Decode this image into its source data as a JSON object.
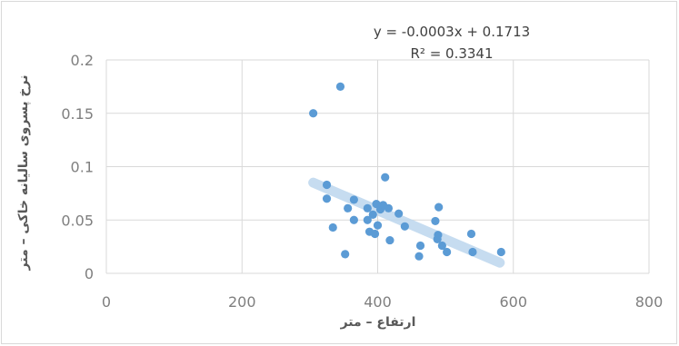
{
  "chart_data": {
    "type": "scatter",
    "xlabel": "ارتفاع – متر",
    "ylabel": "نرخ پسروی سالیانه خاکی – متر",
    "xlim": [
      0,
      800
    ],
    "ylim": [
      0,
      0.2
    ],
    "x_ticks": [
      0,
      200,
      400,
      600,
      800
    ],
    "y_ticks": [
      0,
      0.05,
      0.1,
      0.15,
      0.2
    ],
    "x_tick_labels": [
      "0",
      "200",
      "400",
      "600",
      "800"
    ],
    "y_tick_labels": [
      "0",
      "0.05",
      "0.1",
      "0.15",
      "0.2"
    ],
    "grid": true,
    "point_color": "#5b9bd5",
    "trendline_color": "#bdd7ee",
    "trendline": {
      "equation": "y = -0.0003x + 0.1713",
      "r_squared": "R² = 0.3341",
      "x_range": [
        305,
        580
      ],
      "y_range": [
        0.085,
        0.01
      ]
    },
    "points": [
      {
        "x": 305,
        "y": 0.15
      },
      {
        "x": 345,
        "y": 0.175
      },
      {
        "x": 325,
        "y": 0.083
      },
      {
        "x": 325,
        "y": 0.07
      },
      {
        "x": 334,
        "y": 0.043
      },
      {
        "x": 352,
        "y": 0.018
      },
      {
        "x": 356,
        "y": 0.061
      },
      {
        "x": 365,
        "y": 0.069
      },
      {
        "x": 365,
        "y": 0.05
      },
      {
        "x": 385,
        "y": 0.061
      },
      {
        "x": 385,
        "y": 0.05
      },
      {
        "x": 388,
        "y": 0.039
      },
      {
        "x": 393,
        "y": 0.055
      },
      {
        "x": 396,
        "y": 0.037
      },
      {
        "x": 398,
        "y": 0.065
      },
      {
        "x": 400,
        "y": 0.045
      },
      {
        "x": 404,
        "y": 0.06
      },
      {
        "x": 408,
        "y": 0.064
      },
      {
        "x": 411,
        "y": 0.09
      },
      {
        "x": 416,
        "y": 0.061
      },
      {
        "x": 418,
        "y": 0.031
      },
      {
        "x": 431,
        "y": 0.056
      },
      {
        "x": 440,
        "y": 0.044
      },
      {
        "x": 461,
        "y": 0.016
      },
      {
        "x": 463,
        "y": 0.026
      },
      {
        "x": 485,
        "y": 0.049
      },
      {
        "x": 488,
        "y": 0.032
      },
      {
        "x": 489,
        "y": 0.036
      },
      {
        "x": 490,
        "y": 0.062
      },
      {
        "x": 495,
        "y": 0.026
      },
      {
        "x": 502,
        "y": 0.02
      },
      {
        "x": 538,
        "y": 0.037
      },
      {
        "x": 540,
        "y": 0.02
      },
      {
        "x": 582,
        "y": 0.02
      }
    ]
  }
}
